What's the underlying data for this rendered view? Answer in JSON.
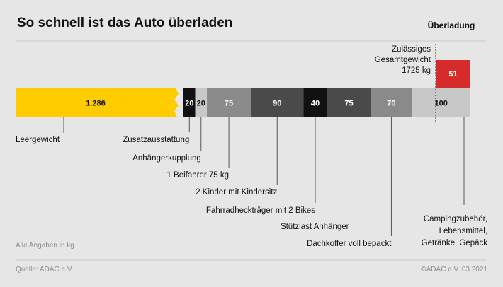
{
  "title": "So schnell ist das Auto überladen",
  "footnote": "Alle Angaben in kg",
  "source": "Quelle: ADAC e.V.",
  "credit": "©ADAC e.V.  03.2021",
  "colors": {
    "background": "#e6e6e6",
    "divider": "#c9c9c9",
    "leader": "#555555"
  },
  "chart_data": {
    "type": "bar",
    "orientation": "horizontal-stacked",
    "unit": "kg",
    "limit_label": [
      "Zulässiges",
      "Gesamtgewicht",
      "1725 kg"
    ],
    "overload_label": "Überladung",
    "segments": [
      {
        "value": 1286,
        "value_label": "1.286",
        "label": [
          "Leergewicht"
        ],
        "color": "#ffcc00",
        "text_color": "#111111"
      },
      {
        "value": 20,
        "value_label": "20",
        "label": [
          "Zusatzausstattung"
        ],
        "color": "#111111",
        "text_color": "#ffffff"
      },
      {
        "value": 20,
        "value_label": "20",
        "label": [
          "Anhängerkupplung"
        ],
        "color": "#c8c8c8",
        "text_color": "#111111"
      },
      {
        "value": 75,
        "value_label": "75",
        "label": [
          "1 Beifahrer 75 kg"
        ],
        "color": "#8a8a8a",
        "text_color": "#ffffff"
      },
      {
        "value": 90,
        "value_label": "90",
        "label": [
          "2 Kinder mit Kindersitz"
        ],
        "color": "#4a4a4a",
        "text_color": "#ffffff"
      },
      {
        "value": 40,
        "value_label": "40",
        "label": [
          "Fahrradheckträger mit 2 Bikes"
        ],
        "color": "#111111",
        "text_color": "#ffffff"
      },
      {
        "value": 75,
        "value_label": "75",
        "label": [
          "Stützlast Anhänger"
        ],
        "color": "#4a4a4a",
        "text_color": "#ffffff"
      },
      {
        "value": 70,
        "value_label": "70",
        "label": [
          "Dachkoffer voll bepackt"
        ],
        "color": "#8a8a8a",
        "text_color": "#ffffff"
      },
      {
        "value": 100,
        "value_label": "100",
        "label": [
          "Campingzubehör,",
          "Lebensmittel,",
          "Getränke, Gepäck"
        ],
        "color": "#c8c8c8",
        "text_color": "#111111"
      }
    ],
    "overload": {
      "value": 51,
      "value_label": "51",
      "color": "#d52b2b",
      "text_color": "#ffffff"
    }
  }
}
